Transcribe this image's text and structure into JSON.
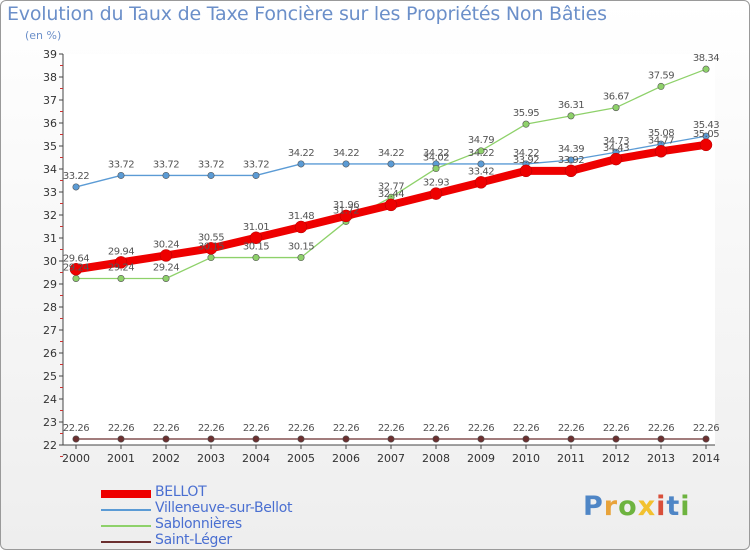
{
  "chart_data": {
    "type": "line",
    "title": "Evolution du Taux de Taxe Foncière sur les Propriétés Non Bâties",
    "ylabel": "(en %)",
    "xlabel": "",
    "ylim": [
      22,
      39
    ],
    "yticks": [
      22,
      23,
      24,
      25,
      26,
      27,
      28,
      29,
      30,
      31,
      32,
      33,
      34,
      35,
      36,
      37,
      38,
      39
    ],
    "categories": [
      "2000",
      "2001",
      "2002",
      "2003",
      "2004",
      "2005",
      "2006",
      "2007",
      "2008",
      "2009",
      "2010",
      "2011",
      "2012",
      "2013",
      "2014"
    ],
    "series": [
      {
        "name": "Saint-Léger",
        "color": "#6b2f2f",
        "values": [
          22.26,
          22.26,
          22.26,
          22.26,
          22.26,
          22.26,
          22.26,
          22.26,
          22.26,
          22.26,
          22.26,
          22.26,
          22.26,
          22.26,
          22.26
        ],
        "labels": [
          "22.26",
          "22.26",
          "22.26",
          "22.26",
          "22.26",
          "22.26",
          "22.26",
          "22.26",
          "22.26",
          "22.26",
          "22.26",
          "22.26",
          "22.26",
          "22.26",
          "22.26"
        ]
      },
      {
        "name": "Villeneuve-sur-Bellot",
        "color": "#5b9bd5",
        "values": [
          33.22,
          33.72,
          33.72,
          33.72,
          33.72,
          34.22,
          34.22,
          34.22,
          34.22,
          34.22,
          34.22,
          34.39,
          34.73,
          35.08,
          35.43
        ],
        "labels": [
          "33.22",
          "33.72",
          "33.72",
          "33.72",
          "33.72",
          "34.22",
          "34.22",
          "34.22",
          "34.22",
          "34.22",
          "34.22",
          "34.39",
          "34.73",
          "35.08",
          "35.43"
        ]
      },
      {
        "name": "Sablonnières",
        "color": "#8ed16a",
        "values": [
          29.24,
          29.24,
          29.24,
          30.15,
          30.15,
          30.15,
          31.72,
          32.77,
          34.02,
          34.79,
          35.95,
          36.31,
          36.67,
          37.59,
          38.34
        ],
        "labels": [
          "29.24",
          "29.24",
          "29.24",
          "30.15",
          "30.15",
          "30.15",
          "31.72",
          "32.77",
          "34.02",
          "34.79",
          "35.95",
          "36.31",
          "36.67",
          "37.59",
          "38.34"
        ]
      },
      {
        "name": "BELLOT",
        "color": "#ee0000",
        "values": [
          29.64,
          29.94,
          30.24,
          30.55,
          31.01,
          31.48,
          31.96,
          32.44,
          32.93,
          33.42,
          33.92,
          33.92,
          34.43,
          34.77,
          35.05
        ],
        "labels": [
          "29.64",
          "29.94",
          "30.24",
          "30.55",
          "31.01",
          "31.48",
          "31.96",
          "32.44",
          "32.93",
          "33.42",
          "33.92",
          "33.92",
          "34.43",
          "34.77",
          "35.05"
        ]
      }
    ],
    "legend": [
      "BELLOT",
      "Villeneuve-sur-Bellot",
      "Sablonnières",
      "Saint-Léger"
    ],
    "legend_position": "bottom-left",
    "grid": false
  },
  "logo": {
    "letters": [
      "P",
      "r",
      "o",
      "x",
      "i",
      "t",
      "i"
    ]
  }
}
